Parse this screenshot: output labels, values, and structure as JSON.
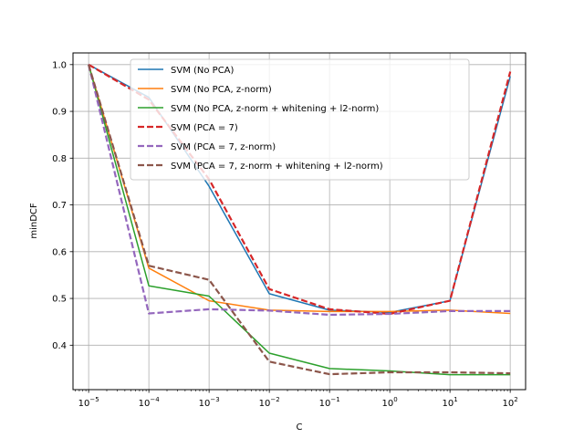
{
  "chart_data": {
    "type": "line",
    "xscale": "log",
    "xlabel": "C",
    "ylabel": "minDCF",
    "x": [
      1e-05,
      0.0001,
      0.001,
      0.01,
      0.1,
      1,
      10,
      100
    ],
    "x_tick_labels": [
      {
        "base": "10",
        "exp": "−5"
      },
      {
        "base": "10",
        "exp": "−4"
      },
      {
        "base": "10",
        "exp": "−3"
      },
      {
        "base": "10",
        "exp": "−2"
      },
      {
        "base": "10",
        "exp": "−1"
      },
      {
        "base": "10",
        "exp": "0"
      },
      {
        "base": "10",
        "exp": "1"
      },
      {
        "base": "10",
        "exp": "2"
      }
    ],
    "xlim": [
      5.5e-06,
      180
    ],
    "ylim": [
      0.305,
      1.025
    ],
    "yticks": [
      0.4,
      0.5,
      0.6,
      0.7,
      0.8,
      0.9,
      1.0
    ],
    "y_tick_labels": [
      "0.4",
      "0.5",
      "0.6",
      "0.7",
      "0.8",
      "0.9",
      "1.0"
    ],
    "grid": true,
    "legend_position": "upper-center",
    "series": [
      {
        "name": "SVM (No PCA)",
        "color": "#1f77b4",
        "dash": "solid",
        "values": [
          1.0,
          0.93,
          0.74,
          0.51,
          0.475,
          0.47,
          0.495,
          0.975
        ]
      },
      {
        "name": "SVM (No PCA, z-norm)",
        "color": "#ff7f0e",
        "dash": "solid",
        "values": [
          1.0,
          0.565,
          0.495,
          0.475,
          0.472,
          0.472,
          0.475,
          0.468
        ]
      },
      {
        "name": "SVM (No PCA, z-norm + whitening + l2-norm)",
        "color": "#2ca02c",
        "dash": "solid",
        "values": [
          1.0,
          0.527,
          0.505,
          0.383,
          0.35,
          0.345,
          0.337,
          0.337
        ]
      },
      {
        "name": "SVM (PCA = 7)",
        "color": "#d62728",
        "dash": "dashed",
        "values": [
          1.0,
          0.925,
          0.755,
          0.52,
          0.477,
          0.467,
          0.495,
          0.985
        ]
      },
      {
        "name": "SVM (PCA = 7, z-norm)",
        "color": "#9467bd",
        "dash": "dashed",
        "values": [
          1.0,
          0.468,
          0.477,
          0.474,
          0.465,
          0.467,
          0.473,
          0.473
        ]
      },
      {
        "name": "SVM (PCA = 7, z-norm + whitening + l2-norm)",
        "color": "#8c564b",
        "dash": "dashed",
        "values": [
          1.0,
          0.57,
          0.54,
          0.365,
          0.338,
          0.342,
          0.342,
          0.34
        ]
      }
    ]
  }
}
